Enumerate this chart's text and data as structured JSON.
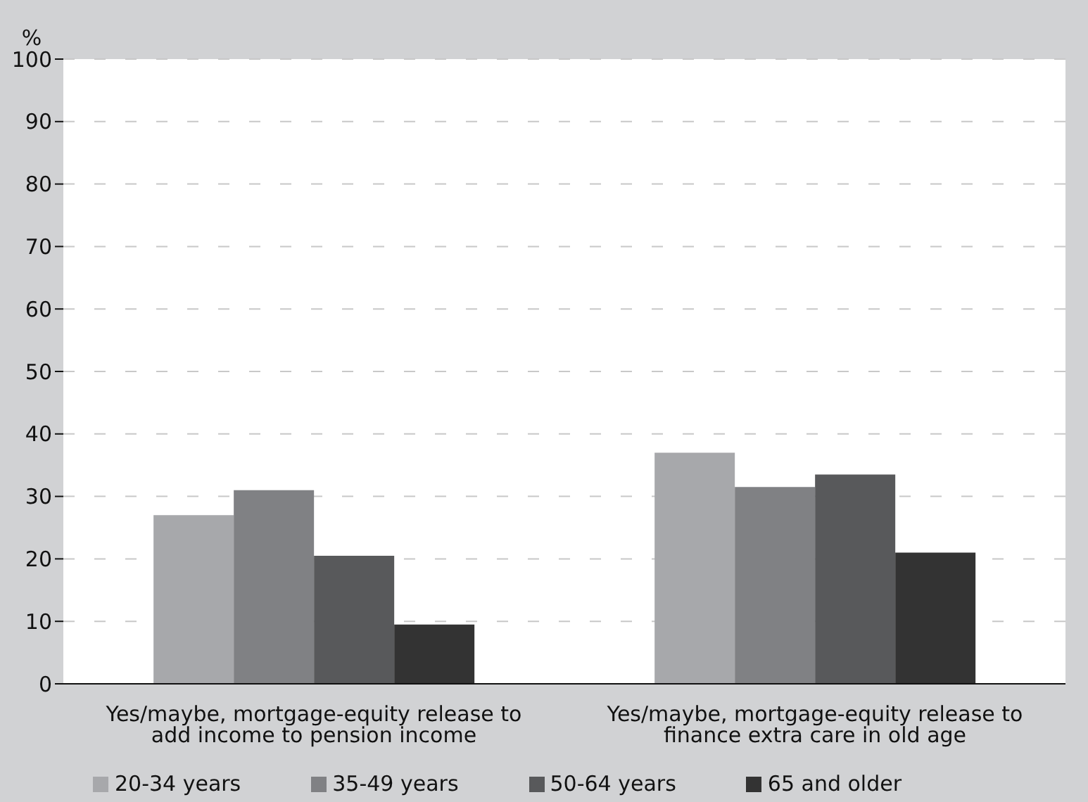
{
  "chart_data": {
    "type": "bar",
    "ylabel": "%",
    "categories": [
      "Yes/maybe, mortgage-equity release to add income to pension income",
      "Yes/maybe, mortgage-equity release to finance extra care in old age"
    ],
    "series": [
      {
        "name": "20-34 years",
        "color": "#a7a8ab",
        "values": [
          27,
          37
        ]
      },
      {
        "name": "35-49 years",
        "color": "#808184",
        "values": [
          31,
          31.5
        ]
      },
      {
        "name": "50-64 years",
        "color": "#58595b",
        "values": [
          20.5,
          33.5
        ]
      },
      {
        "name": "65 and older",
        "color": "#333333",
        "values": [
          9.5,
          21
        ]
      }
    ],
    "ylim": [
      0,
      100
    ],
    "yticks": [
      0,
      10,
      20,
      30,
      40,
      50,
      60,
      70,
      80,
      90,
      100
    ],
    "grid": "y",
    "legend": "bottom"
  }
}
